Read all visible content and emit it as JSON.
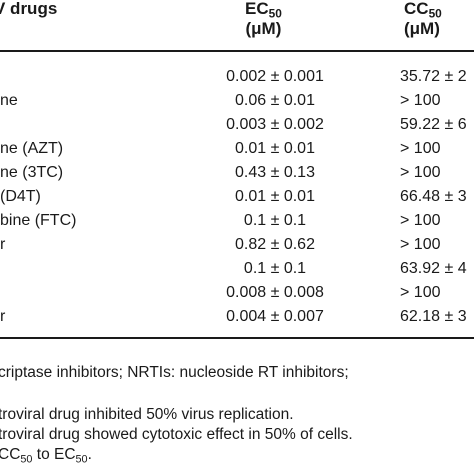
{
  "table": {
    "headers": {
      "drugs": "V drugs",
      "ec_main": "EC",
      "ec_sub": "50",
      "ec_unit": "(μM)",
      "cc_main": "CC",
      "cc_sub": "50",
      "cc_unit": "(μM)"
    },
    "rows": [
      {
        "name": "",
        "ec": "0.002 ± 0.001",
        "cc": "35.72 ± 2"
      },
      {
        "name": "ne",
        "ec": "0.06 ± 0.01",
        "cc": "> 100"
      },
      {
        "name": "",
        "ec": "0.003 ± 0.002",
        "cc": "59.22 ± 6"
      },
      {
        "name": "ne (AZT)",
        "ec": "0.01 ± 0.01",
        "cc": "> 100"
      },
      {
        "name": "ne (3TC)",
        "ec": "0.43 ± 0.13",
        "cc": "> 100"
      },
      {
        "name": "(D4T)",
        "ec": "0.01 ± 0.01",
        "cc": "66.48 ± 3"
      },
      {
        "name": "bine (FTC)",
        "ec": "0.1 ± 0.1",
        "cc": "> 100"
      },
      {
        "name": "r",
        "ec": "0.82 ± 0.62",
        "cc": "> 100"
      },
      {
        "name": "",
        "ec": "0.1 ± 0.1",
        "cc": "63.92 ± 4"
      },
      {
        "name": "",
        "ec": "0.008 ± 0.008",
        "cc": "> 100"
      },
      {
        "name": "r",
        "ec": "0.004 ± 0.007",
        "cc": "62.18 ± 3"
      }
    ]
  },
  "footnotes": {
    "abbrev": "criptase inhibitors; NRTIs: nucleoside RT inhibitors;",
    "ec_note": "troviral drug inhibited 50% virus replication.",
    "cc_note": "troviral drug showed cytotoxic effect in 50% of cells.",
    "si_pre": "CC",
    "si_sub1": "50",
    "si_mid": " to EC",
    "si_sub2": "50",
    "si_end": "."
  }
}
